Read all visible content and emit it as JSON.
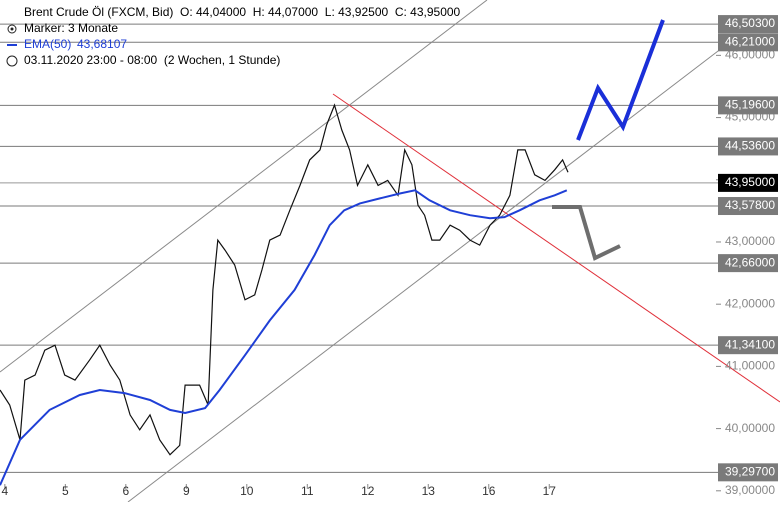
{
  "chart_data": {
    "type": "line",
    "header": {
      "instrument": "Brent Crude Öl (FXCM, Bid)",
      "ohlc": "O: 44,04000  H: 44,07000  L: 43,92500  C: 43,95000",
      "marker": "Marker: 3 Monate",
      "ema_value": "43,68107",
      "period": "03.11.2020 23:00 - 08:00  (2 Wochen, 1 Stunde)"
    },
    "xlim": [
      -0.08,
      11.74
    ],
    "xticks": [
      {
        "value": 0,
        "label": "4"
      },
      {
        "value": 1,
        "label": "5"
      },
      {
        "value": 2,
        "label": "6"
      },
      {
        "value": 3,
        "label": "9"
      },
      {
        "value": 4,
        "label": "10"
      },
      {
        "value": 5,
        "label": "11"
      },
      {
        "value": 6,
        "label": "12"
      },
      {
        "value": 7,
        "label": "13"
      },
      {
        "value": 8,
        "label": "16"
      },
      {
        "value": 9,
        "label": "17"
      }
    ],
    "ylim": [
      38.82,
      46.89
    ],
    "yticks": [
      {
        "value": 39,
        "label": "39,00000"
      },
      {
        "value": 40,
        "label": "40,00000"
      },
      {
        "value": 41,
        "label": "41,00000"
      },
      {
        "value": 42,
        "label": "42,00000"
      },
      {
        "value": 43,
        "label": "43,00000"
      },
      {
        "value": 44,
        "label": "44,00000"
      },
      {
        "value": 45,
        "label": "45,00000"
      },
      {
        "value": 46,
        "label": "46,00000"
      }
    ],
    "series": [
      {
        "color": "#111111",
        "x": [
          -0.08,
          0.08,
          0.25,
          0.33,
          0.5,
          0.66,
          0.83,
          0.99,
          1.16,
          1.4,
          1.57,
          1.74,
          1.9,
          2.07,
          2.23,
          2.4,
          2.56,
          2.73,
          2.89,
          2.98,
          3.22,
          3.36,
          3.44,
          3.52,
          3.64,
          3.8,
          3.97,
          4.13,
          4.25,
          4.38,
          4.55,
          4.71,
          4.88,
          5.04,
          5.21,
          5.32,
          5.45,
          5.57,
          5.7,
          5.83,
          6.0,
          6.17,
          6.33,
          6.5,
          6.61,
          6.73,
          6.83,
          6.94,
          7.06,
          7.19,
          7.36,
          7.52,
          7.69,
          7.85,
          8.02,
          8.18,
          8.35,
          8.48,
          8.6,
          8.76,
          8.93,
          9.09,
          9.22,
          9.31
        ],
        "values": [
          40.62,
          40.38,
          39.82,
          40.78,
          40.86,
          41.26,
          41.34,
          40.86,
          40.78,
          41.1,
          41.34,
          41.02,
          40.78,
          40.22,
          39.98,
          40.22,
          39.82,
          39.58,
          39.73,
          40.7,
          40.7,
          40.38,
          42.23,
          43.03,
          42.87,
          42.63,
          42.07,
          42.15,
          42.55,
          43.03,
          43.11,
          43.51,
          43.91,
          44.32,
          44.48,
          44.88,
          45.2,
          44.8,
          44.48,
          43.91,
          44.24,
          43.91,
          43.99,
          43.75,
          44.48,
          44.24,
          43.59,
          43.43,
          43.03,
          43.03,
          43.27,
          43.19,
          43.03,
          42.95,
          43.27,
          43.43,
          43.75,
          44.48,
          44.48,
          44.08,
          43.99,
          44.16,
          44.32,
          44.12
        ]
      },
      {
        "name": "EMA(50)",
        "color": "#1f3fd6",
        "x": [
          -0.08,
          0.25,
          0.74,
          1.24,
          1.57,
          1.98,
          2.4,
          2.73,
          2.98,
          3.31,
          3.55,
          3.97,
          4.38,
          4.79,
          5.12,
          5.37,
          5.61,
          5.87,
          6.2,
          6.53,
          6.78,
          7.02,
          7.36,
          7.69,
          8.02,
          8.26,
          8.51,
          8.84,
          9.09,
          9.29
        ],
        "values": [
          39.09,
          39.82,
          40.3,
          40.54,
          40.62,
          40.57,
          40.46,
          40.3,
          40.25,
          40.33,
          40.62,
          41.18,
          41.74,
          42.23,
          42.79,
          43.27,
          43.51,
          43.62,
          43.7,
          43.78,
          43.83,
          43.67,
          43.51,
          43.43,
          43.38,
          43.4,
          43.51,
          43.67,
          43.75,
          43.83
        ]
      }
    ],
    "levels": {
      "values": [
        46.503,
        46.21,
        45.196,
        44.536,
        43.95,
        43.578,
        42.66,
        41.341,
        39.297
      ],
      "value_labels": [
        "46,50300",
        "46,21000",
        "45,19600",
        "44,53600",
        "43,95000",
        "43,57800",
        "42,66000",
        "41,34100",
        "39,29700"
      ],
      "color": "#7a7a7a",
      "current_color": "#000000"
    }
  }
}
